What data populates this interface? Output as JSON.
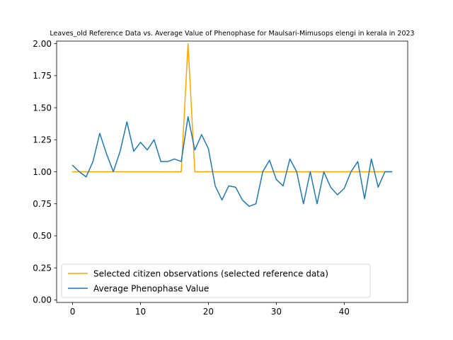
{
  "chart_data": {
    "type": "line",
    "title": "Leaves_old Reference Data vs. Average Value of Phenophase for Maulsari-Mimusops elengi in kerala in 2023",
    "xlabel": "",
    "ylabel": "",
    "xlim": [
      -2.35,
      49.35
    ],
    "ylim": [
      -0.02,
      2.02
    ],
    "xticks": [
      0,
      10,
      20,
      30,
      40
    ],
    "yticks": [
      0.0,
      0.25,
      0.5,
      0.75,
      1.0,
      1.25,
      1.5,
      1.75,
      2.0
    ],
    "xtick_labels": [
      "0",
      "10",
      "20",
      "30",
      "40"
    ],
    "ytick_labels": [
      "0.00",
      "0.25",
      "0.50",
      "0.75",
      "1.00",
      "1.25",
      "1.50",
      "1.75",
      "2.00"
    ],
    "grid": false,
    "legend_position": "lower-left",
    "series": [
      {
        "name": "Selected citizen observations (selected reference data)",
        "color": "#FFA500",
        "x": [
          0,
          1,
          2,
          3,
          4,
          5,
          6,
          7,
          8,
          9,
          10,
          11,
          12,
          13,
          14,
          15,
          16,
          17,
          18,
          19,
          20,
          21,
          22,
          23,
          24,
          25,
          26,
          27,
          28,
          29,
          30,
          31,
          32,
          33,
          34,
          35,
          36,
          37,
          38,
          39,
          40,
          41,
          42,
          43,
          44,
          45,
          46,
          47
        ],
        "values": [
          1,
          1,
          1,
          1,
          1,
          1,
          1,
          1,
          1,
          1,
          1,
          1,
          1,
          1,
          1,
          1,
          1,
          2,
          1,
          1,
          1,
          1,
          1,
          1,
          1,
          1,
          1,
          1,
          1,
          1,
          1,
          1,
          1,
          1,
          1,
          1,
          1,
          1,
          1,
          1,
          1,
          1,
          1,
          1,
          1,
          1,
          1,
          1
        ]
      },
      {
        "name": "Average Phenophase Value",
        "color": "#1f77b4",
        "x": [
          0,
          1,
          2,
          3,
          4,
          5,
          6,
          7,
          8,
          9,
          10,
          11,
          12,
          13,
          14,
          15,
          16,
          17,
          18,
          19,
          20,
          21,
          22,
          23,
          24,
          25,
          26,
          27,
          28,
          29,
          30,
          31,
          32,
          33,
          34,
          35,
          36,
          37,
          38,
          39,
          40,
          41,
          42,
          43,
          44,
          45,
          46,
          47
        ],
        "values": [
          1.05,
          1.0,
          0.96,
          1.08,
          1.3,
          1.14,
          1.0,
          1.16,
          1.39,
          1.16,
          1.23,
          1.17,
          1.25,
          1.08,
          1.08,
          1.1,
          1.08,
          1.43,
          1.17,
          1.29,
          1.18,
          0.89,
          0.78,
          0.89,
          0.88,
          0.78,
          0.73,
          0.75,
          1.0,
          1.09,
          0.94,
          0.89,
          1.1,
          1.0,
          0.75,
          1.0,
          0.75,
          1.0,
          0.88,
          0.82,
          0.87,
          1.0,
          1.08,
          0.79,
          1.1,
          0.88,
          1.0,
          1.0
        ]
      }
    ]
  }
}
